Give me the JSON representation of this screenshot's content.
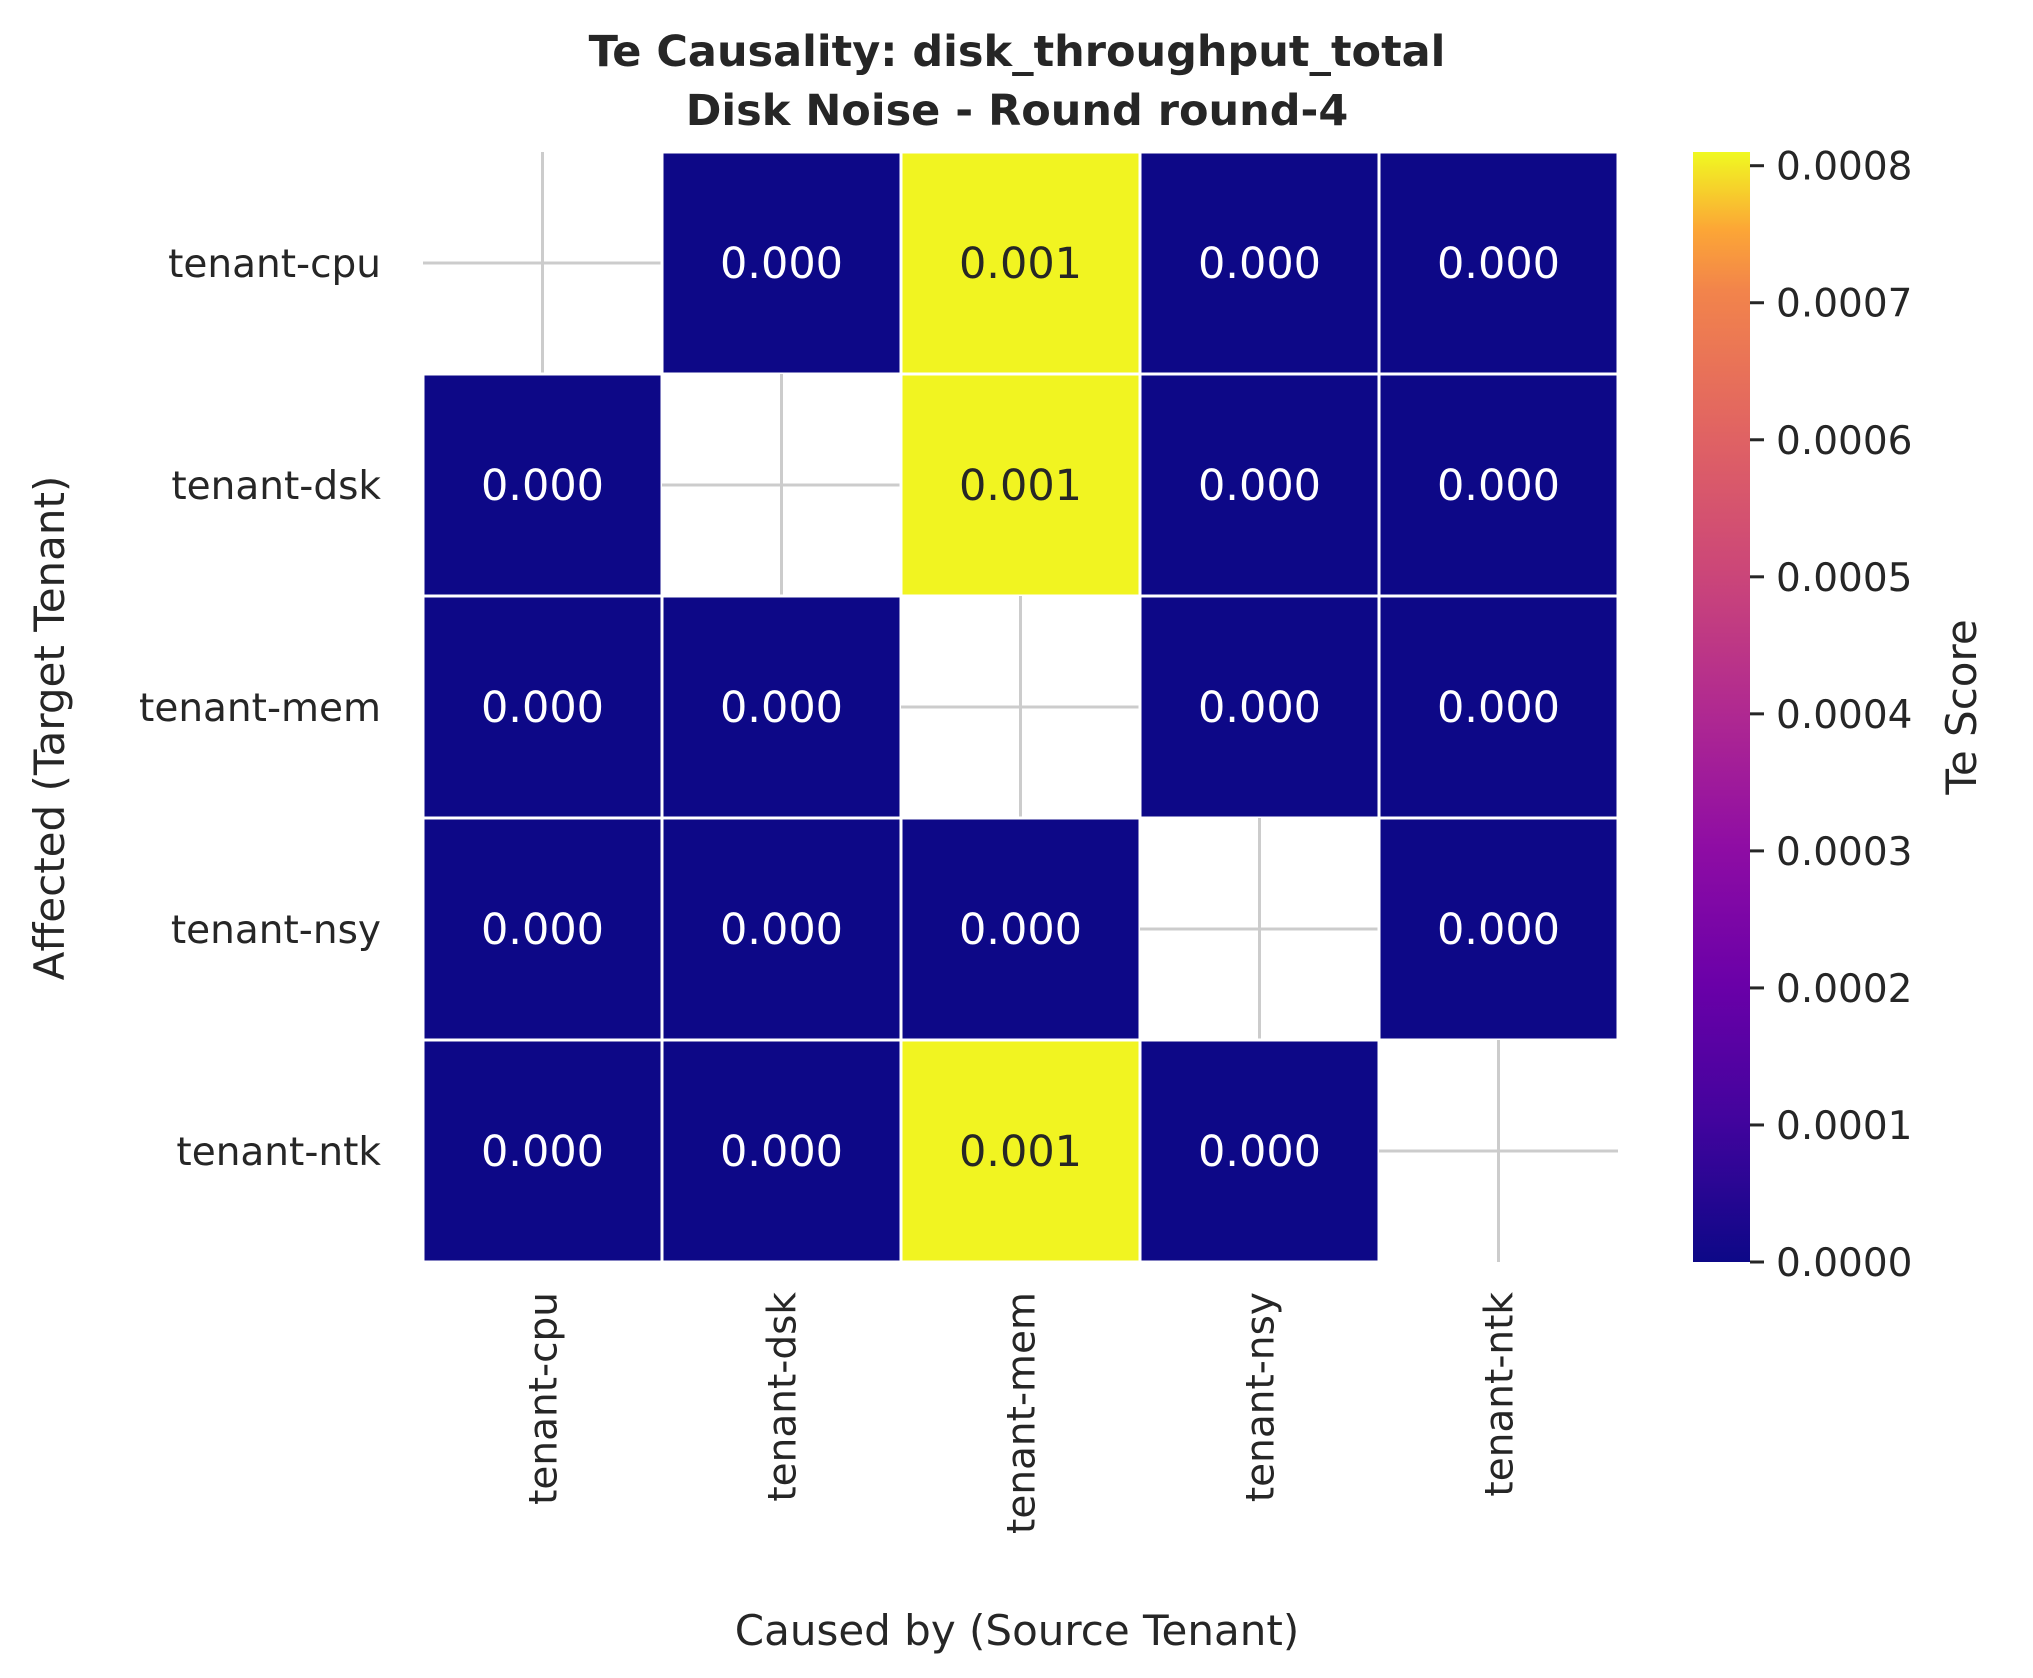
{
  "chart_data": {
    "type": "heatmap",
    "title": "Te Causality: disk_throughput_total",
    "subtitle": "Disk Noise - Round round-4",
    "xlabel": "Caused by (Source Tenant)",
    "ylabel": "Affected (Target Tenant)",
    "x_categories": [
      "tenant-cpu",
      "tenant-dsk",
      "tenant-mem",
      "tenant-nsy",
      "tenant-ntk"
    ],
    "y_categories": [
      "tenant-cpu",
      "tenant-dsk",
      "tenant-mem",
      "tenant-nsy",
      "tenant-ntk"
    ],
    "values": [
      [
        null,
        0.0,
        0.0008,
        0.0,
        0.0
      ],
      [
        0.0,
        null,
        0.0008,
        0.0,
        0.0
      ],
      [
        0.0,
        0.0,
        null,
        0.0,
        0.0
      ],
      [
        0.0,
        0.0,
        0.0,
        null,
        0.0
      ],
      [
        0.0,
        0.0,
        0.0008,
        0.0,
        null
      ]
    ],
    "cell_labels": [
      [
        "",
        "0.000",
        "0.001",
        "0.000",
        "0.000"
      ],
      [
        "0.000",
        "",
        "0.001",
        "0.000",
        "0.000"
      ],
      [
        "0.000",
        "0.000",
        "",
        "0.000",
        "0.000"
      ],
      [
        "0.000",
        "0.000",
        "0.000",
        "",
        "0.000"
      ],
      [
        "0.000",
        "0.000",
        "0.001",
        "0.000",
        ""
      ]
    ],
    "colorbar": {
      "label": "Te Score",
      "min": 0.0,
      "max": 0.00081,
      "ticks": [
        0.0,
        0.0001,
        0.0002,
        0.0003,
        0.0004,
        0.0005,
        0.0006,
        0.0007,
        0.0008
      ],
      "tick_labels": [
        "0.0000",
        "0.0001",
        "0.0002",
        "0.0003",
        "0.0004",
        "0.0005",
        "0.0006",
        "0.0007",
        "0.0008"
      ],
      "colormap": "plasma"
    },
    "grid": false,
    "colors": {
      "low": "#0d0887",
      "high": "#f0f921",
      "cell_border": "#ffffff",
      "diagonal_marker": "#cccccc",
      "text_dark": "#262626",
      "text_light": "#ffffff"
    }
  }
}
